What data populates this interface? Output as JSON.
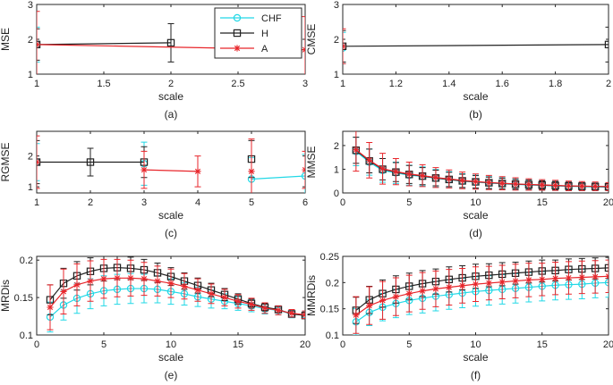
{
  "chart_data": [
    {
      "id": "a",
      "type": "line",
      "caption": "(a)",
      "xlabel": "scale",
      "ylabel": "MSE",
      "xlim": [
        1,
        3
      ],
      "ylim": [
        1,
        3
      ],
      "xticks": [
        "1",
        "1.5",
        "2",
        "2.5",
        "3"
      ],
      "xtick_vals": [
        1,
        1.5,
        2,
        2.5,
        3
      ],
      "yticks": [
        "1",
        "2",
        "3"
      ],
      "ytick_vals": [
        1,
        2,
        3
      ],
      "legend": [
        "CHF",
        "H",
        "A"
      ],
      "series": [
        {
          "name": "CHF",
          "color": "#22d8e6",
          "marker": "circle",
          "x": [
            1
          ],
          "y": [
            1.85
          ],
          "err": [
            0.5
          ]
        },
        {
          "name": "H",
          "color": "#222222",
          "marker": "square",
          "x": [
            1,
            2
          ],
          "y": [
            1.85,
            1.9
          ],
          "err": [
            0.45,
            0.55
          ]
        },
        {
          "name": "A",
          "color": "#e8262b",
          "marker": "star",
          "x": [
            1,
            3
          ],
          "y": [
            1.85,
            1.7
          ],
          "err": [
            0.95,
            0.95
          ]
        }
      ]
    },
    {
      "id": "b",
      "type": "line",
      "caption": "(b)",
      "xlabel": "scale",
      "ylabel": "CMSE",
      "xlim": [
        1,
        2
      ],
      "ylim": [
        1,
        3
      ],
      "xticks": [
        "1",
        "1.2",
        "1.4",
        "1.6",
        "1.8",
        "2"
      ],
      "xtick_vals": [
        1,
        1.2,
        1.4,
        1.6,
        1.8,
        2
      ],
      "yticks": [
        "1",
        "2",
        "3"
      ],
      "ytick_vals": [
        1,
        2,
        3
      ],
      "series": [
        {
          "name": "CHF",
          "color": "#22d8e6",
          "marker": "circle",
          "x": [
            1
          ],
          "y": [
            1.75
          ],
          "err": [
            0.45
          ]
        },
        {
          "name": "H",
          "color": "#222222",
          "marker": "square",
          "x": [
            1,
            2
          ],
          "y": [
            1.8,
            1.85
          ],
          "err": [
            0.45,
            0.5
          ]
        },
        {
          "name": "A",
          "color": "#e8262b",
          "marker": "star",
          "x": [
            1
          ],
          "y": [
            1.8
          ],
          "err": [
            0.5
          ]
        }
      ]
    },
    {
      "id": "c",
      "type": "line",
      "caption": "(c)",
      "xlabel": "scale",
      "ylabel": "RGMSE",
      "xlim": [
        1,
        6
      ],
      "ylim": [
        0.8,
        2.8
      ],
      "xticks": [
        "1",
        "2",
        "3",
        "4",
        "5",
        "6"
      ],
      "xtick_vals": [
        1,
        2,
        3,
        4,
        5,
        6
      ],
      "yticks": [
        "1",
        "2"
      ],
      "ytick_vals": [
        1,
        2
      ],
      "series": [
        {
          "name": "CHF",
          "color": "#22d8e6",
          "marker": "circle",
          "segments": [
            {
              "x": [
                1
              ],
              "y": [
                1.8
              ],
              "err": [
                0.6
              ]
            },
            {
              "x": [
                3
              ],
              "y": [
                1.75
              ],
              "err": [
                0.7
              ]
            },
            {
              "x": [
                5,
                6
              ],
              "y": [
                1.25,
                1.35
              ],
              "err": [
                0.7,
                0.7
              ]
            }
          ]
        },
        {
          "name": "H",
          "color": "#222222",
          "marker": "square",
          "segments": [
            {
              "x": [
                1,
                2,
                3
              ],
              "y": [
                1.8,
                1.8,
                1.8
              ],
              "err": [
                0.7,
                0.45,
                0.5
              ]
            },
            {
              "x": [
                5
              ],
              "y": [
                1.9
              ],
              "err": [
                0.6
              ]
            }
          ]
        },
        {
          "name": "A",
          "color": "#e8262b",
          "marker": "star",
          "segments": [
            {
              "x": [
                1
              ],
              "y": [
                1.8
              ],
              "err": [
                0.85
              ]
            },
            {
              "x": [
                3,
                4
              ],
              "y": [
                1.55,
                1.5
              ],
              "err": [
                0.6,
                0.5
              ]
            },
            {
              "x": [
                5
              ],
              "y": [
                1.5
              ],
              "err": [
                1.05
              ]
            },
            {
              "x": [
                6
              ],
              "y": [
                1.55
              ],
              "err": [
                0.6
              ]
            }
          ]
        }
      ]
    },
    {
      "id": "d",
      "type": "line",
      "caption": "(d)",
      "xlabel": "scale",
      "ylabel": "MMSE",
      "xlim": [
        0,
        20
      ],
      "ylim": [
        0,
        2.6
      ],
      "xticks": [
        "0",
        "5",
        "10",
        "15",
        "20"
      ],
      "xtick_vals": [
        0,
        5,
        10,
        15,
        20
      ],
      "yticks": [
        "0",
        "1",
        "2"
      ],
      "ytick_vals": [
        0,
        1,
        2
      ],
      "series": [
        {
          "name": "CHF",
          "color": "#22d8e6",
          "marker": "circle",
          "x": [
            1,
            2,
            3,
            4,
            5,
            6,
            7,
            8,
            9,
            10,
            11,
            12,
            13,
            14,
            15,
            16,
            17,
            18,
            19,
            20
          ],
          "y": [
            1.75,
            1.3,
            0.95,
            0.85,
            0.75,
            0.7,
            0.62,
            0.56,
            0.5,
            0.46,
            0.42,
            0.39,
            0.36,
            0.34,
            0.32,
            0.3,
            0.28,
            0.27,
            0.26,
            0.25
          ],
          "err": [
            0.6,
            0.55,
            0.5,
            0.45,
            0.42,
            0.4,
            0.37,
            0.34,
            0.31,
            0.29,
            0.27,
            0.25,
            0.23,
            0.21,
            0.2,
            0.19,
            0.18,
            0.17,
            0.16,
            0.15
          ]
        },
        {
          "name": "H",
          "color": "#222222",
          "marker": "square",
          "x": [
            1,
            2,
            3,
            4,
            5,
            6,
            7,
            8,
            9,
            10,
            11,
            12,
            13,
            14,
            15,
            16,
            17,
            18,
            19,
            20
          ],
          "y": [
            1.8,
            1.35,
            1.0,
            0.88,
            0.78,
            0.71,
            0.63,
            0.57,
            0.51,
            0.47,
            0.43,
            0.4,
            0.37,
            0.35,
            0.33,
            0.31,
            0.29,
            0.28,
            0.27,
            0.26
          ],
          "err": [
            0.55,
            0.5,
            0.45,
            0.4,
            0.38,
            0.36,
            0.33,
            0.3,
            0.28,
            0.26,
            0.24,
            0.22,
            0.2,
            0.19,
            0.18,
            0.17,
            0.16,
            0.15,
            0.14,
            0.13
          ]
        },
        {
          "name": "A",
          "color": "#e8262b",
          "marker": "star",
          "x": [
            1,
            2,
            3,
            4,
            5,
            6,
            7,
            8,
            9,
            10,
            11,
            12,
            13,
            14,
            15,
            16,
            17,
            18,
            19,
            20
          ],
          "y": [
            1.82,
            1.38,
            1.02,
            0.9,
            0.8,
            0.73,
            0.65,
            0.59,
            0.53,
            0.48,
            0.44,
            0.41,
            0.38,
            0.36,
            0.34,
            0.32,
            0.3,
            0.29,
            0.28,
            0.27
          ],
          "err": [
            0.9,
            0.75,
            0.65,
            0.55,
            0.5,
            0.46,
            0.42,
            0.38,
            0.35,
            0.32,
            0.3,
            0.28,
            0.26,
            0.24,
            0.22,
            0.21,
            0.2,
            0.19,
            0.18,
            0.17
          ]
        }
      ]
    },
    {
      "id": "e",
      "type": "line",
      "caption": "(e)",
      "xlabel": "scale",
      "ylabel": "MRDis",
      "xlim": [
        0,
        20
      ],
      "ylim": [
        0.1,
        0.205
      ],
      "xticks": [
        "0",
        "5",
        "10",
        "15",
        "20"
      ],
      "xtick_vals": [
        0,
        5,
        10,
        15,
        20
      ],
      "yticks": [
        "0.1",
        "0.15",
        "0.2"
      ],
      "ytick_vals": [
        0.1,
        0.15,
        0.2
      ],
      "series": [
        {
          "name": "CHF",
          "color": "#22d8e6",
          "marker": "circle",
          "x": [
            1,
            2,
            3,
            4,
            5,
            6,
            7,
            8,
            9,
            10,
            11,
            12,
            13,
            14,
            15,
            16,
            17,
            18,
            19,
            20
          ],
          "y": [
            0.124,
            0.14,
            0.149,
            0.155,
            0.159,
            0.161,
            0.162,
            0.162,
            0.161,
            0.158,
            0.155,
            0.151,
            0.148,
            0.145,
            0.142,
            0.139,
            0.135,
            0.133,
            0.128,
            0.127
          ],
          "err": [
            0.02,
            0.02,
            0.02,
            0.02,
            0.02,
            0.02,
            0.02,
            0.019,
            0.018,
            0.017,
            0.015,
            0.013,
            0.012,
            0.01,
            0.009,
            0.008,
            0.007,
            0.006,
            0.005,
            0.004
          ]
        },
        {
          "name": "H",
          "color": "#222222",
          "marker": "square",
          "x": [
            1,
            2,
            3,
            4,
            5,
            6,
            7,
            8,
            9,
            10,
            11,
            12,
            13,
            14,
            15,
            16,
            17,
            18,
            19,
            20
          ],
          "y": [
            0.147,
            0.169,
            0.179,
            0.185,
            0.189,
            0.19,
            0.189,
            0.187,
            0.183,
            0.178,
            0.172,
            0.166,
            0.16,
            0.154,
            0.148,
            0.142,
            0.137,
            0.134,
            0.128,
            0.126
          ],
          "err": [
            0.02,
            0.02,
            0.019,
            0.018,
            0.017,
            0.016,
            0.015,
            0.014,
            0.013,
            0.012,
            0.011,
            0.01,
            0.009,
            0.008,
            0.007,
            0.006,
            0.005,
            0.004,
            0.004,
            0.004
          ]
        },
        {
          "name": "A",
          "color": "#e8262b",
          "marker": "star",
          "x": [
            1,
            2,
            3,
            4,
            5,
            6,
            7,
            8,
            9,
            10,
            11,
            12,
            13,
            14,
            15,
            16,
            17,
            18,
            19,
            20
          ],
          "y": [
            0.137,
            0.158,
            0.167,
            0.172,
            0.175,
            0.176,
            0.176,
            0.175,
            0.172,
            0.169,
            0.165,
            0.16,
            0.155,
            0.15,
            0.145,
            0.141,
            0.136,
            0.133,
            0.129,
            0.127
          ],
          "err": [
            0.03,
            0.03,
            0.028,
            0.027,
            0.026,
            0.025,
            0.024,
            0.022,
            0.02,
            0.019,
            0.017,
            0.015,
            0.013,
            0.011,
            0.009,
            0.008,
            0.007,
            0.006,
            0.005,
            0.005
          ]
        }
      ]
    },
    {
      "id": "f",
      "type": "line",
      "caption": "(f)",
      "xlabel": "scale",
      "ylabel": "MMRDis",
      "xlim": [
        0,
        20
      ],
      "ylim": [
        0.1,
        0.25
      ],
      "xticks": [
        "0",
        "5",
        "10",
        "15",
        "20"
      ],
      "xtick_vals": [
        0,
        5,
        10,
        15,
        20
      ],
      "yticks": [
        "0.1",
        "0.15",
        "0.2",
        "0.25"
      ],
      "ytick_vals": [
        0.1,
        0.15,
        0.2,
        0.25
      ],
      "series": [
        {
          "name": "CHF",
          "color": "#22d8e6",
          "marker": "circle",
          "x": [
            1,
            2,
            3,
            4,
            5,
            6,
            7,
            8,
            9,
            10,
            11,
            12,
            13,
            14,
            15,
            16,
            17,
            18,
            19,
            20
          ],
          "y": [
            0.125,
            0.143,
            0.153,
            0.16,
            0.166,
            0.17,
            0.174,
            0.177,
            0.18,
            0.183,
            0.185,
            0.187,
            0.189,
            0.191,
            0.193,
            0.195,
            0.196,
            0.197,
            0.199,
            0.2
          ],
          "err": [
            0.025,
            0.025,
            0.026,
            0.027,
            0.027,
            0.028,
            0.028,
            0.028,
            0.028,
            0.028,
            0.028,
            0.028,
            0.028,
            0.028,
            0.028,
            0.028,
            0.028,
            0.028,
            0.028,
            0.028
          ]
        },
        {
          "name": "H",
          "color": "#222222",
          "marker": "square",
          "x": [
            1,
            2,
            3,
            4,
            5,
            6,
            7,
            8,
            9,
            10,
            11,
            12,
            13,
            14,
            15,
            16,
            17,
            18,
            19,
            20
          ],
          "y": [
            0.147,
            0.167,
            0.179,
            0.187,
            0.193,
            0.198,
            0.202,
            0.206,
            0.209,
            0.212,
            0.214,
            0.216,
            0.218,
            0.22,
            0.222,
            0.223,
            0.225,
            0.226,
            0.227,
            0.228
          ],
          "err": [
            0.025,
            0.026,
            0.026,
            0.026,
            0.025,
            0.025,
            0.024,
            0.024,
            0.023,
            0.023,
            0.022,
            0.022,
            0.021,
            0.021,
            0.021,
            0.02,
            0.02,
            0.02,
            0.02,
            0.02
          ]
        },
        {
          "name": "A",
          "color": "#e8262b",
          "marker": "star",
          "x": [
            1,
            2,
            3,
            4,
            5,
            6,
            7,
            8,
            9,
            10,
            11,
            12,
            13,
            14,
            15,
            16,
            17,
            18,
            19,
            20
          ],
          "y": [
            0.138,
            0.156,
            0.166,
            0.173,
            0.179,
            0.184,
            0.188,
            0.191,
            0.194,
            0.197,
            0.199,
            0.201,
            0.203,
            0.205,
            0.206,
            0.208,
            0.209,
            0.21,
            0.211,
            0.212
          ],
          "err": [
            0.035,
            0.036,
            0.036,
            0.036,
            0.035,
            0.035,
            0.034,
            0.034,
            0.033,
            0.033,
            0.032,
            0.032,
            0.032,
            0.032,
            0.031,
            0.031,
            0.031,
            0.031,
            0.031,
            0.031
          ]
        }
      ]
    }
  ]
}
